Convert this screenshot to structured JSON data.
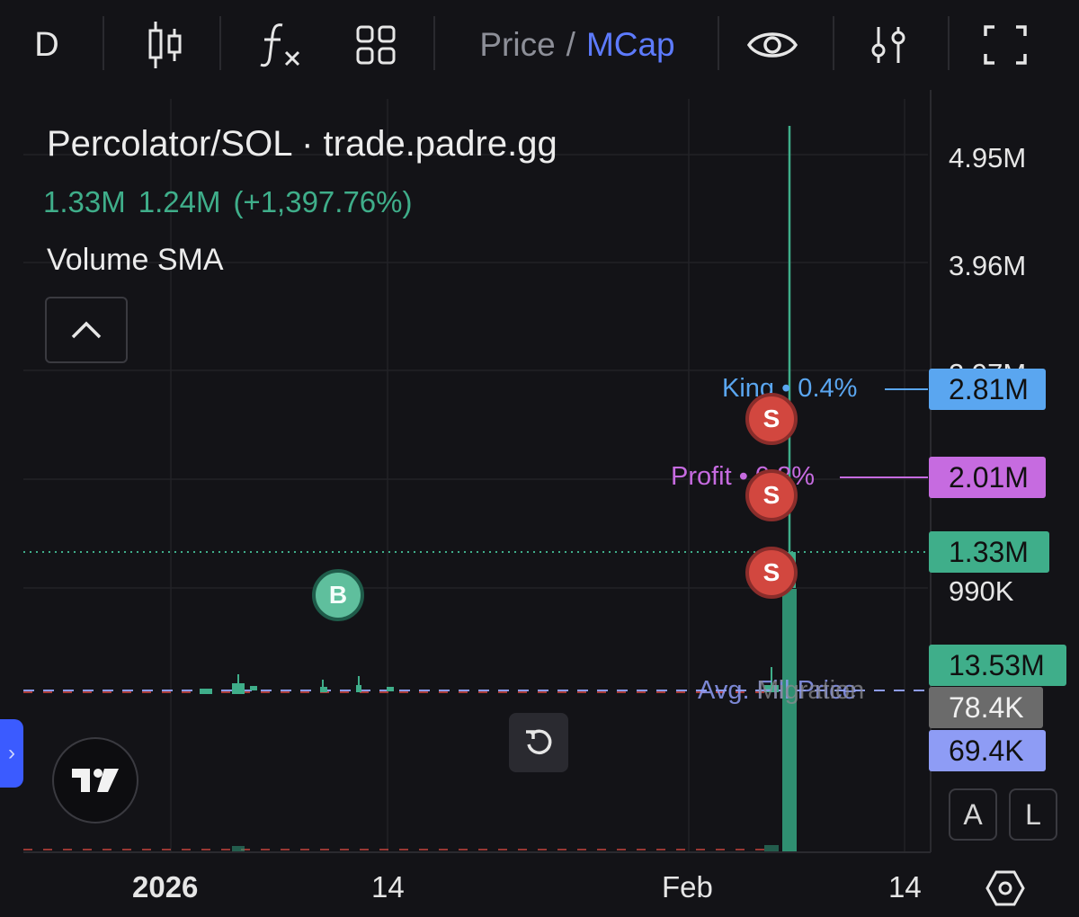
{
  "toolbar": {
    "interval": "D",
    "price_label": "Price",
    "slash": "/",
    "mcap_label": "MCap"
  },
  "legend": {
    "title": "Percolator/SOL · trade.padre.gg",
    "value_1": "1.33M",
    "value_2": "1.24M",
    "change": "(+1,397.76%)",
    "indicator": "Volume SMA"
  },
  "price_scale": {
    "labels": [
      "4.95M",
      "3.96M",
      "2.97M",
      "990K"
    ]
  },
  "tags": {
    "king": "2.81M",
    "profit": "2.01M",
    "current": "1.33M",
    "volume": "13.53M",
    "migration": "78.4K",
    "avg": "69.4K"
  },
  "lines": {
    "king": "King • 0.4%",
    "profit": "Profit • 0.8%",
    "avg": "Avg. Fill Price",
    "migration": "Migration"
  },
  "markers": {
    "buy": "B",
    "sell": "S"
  },
  "time_axis": {
    "labels": [
      "2026",
      "14",
      "Feb",
      "14"
    ]
  },
  "buttons": {
    "auto": "A",
    "log": "L"
  },
  "colors": {
    "accent_blue": "#5d7bff",
    "up_green": "#3fae8a",
    "sell_red": "#d2473f",
    "king_blue": "#5aa6f0",
    "profit_purple": "#c66be0",
    "migration_gray": "#6b6b6b",
    "avg_lavender": "#8e9cf5"
  }
}
